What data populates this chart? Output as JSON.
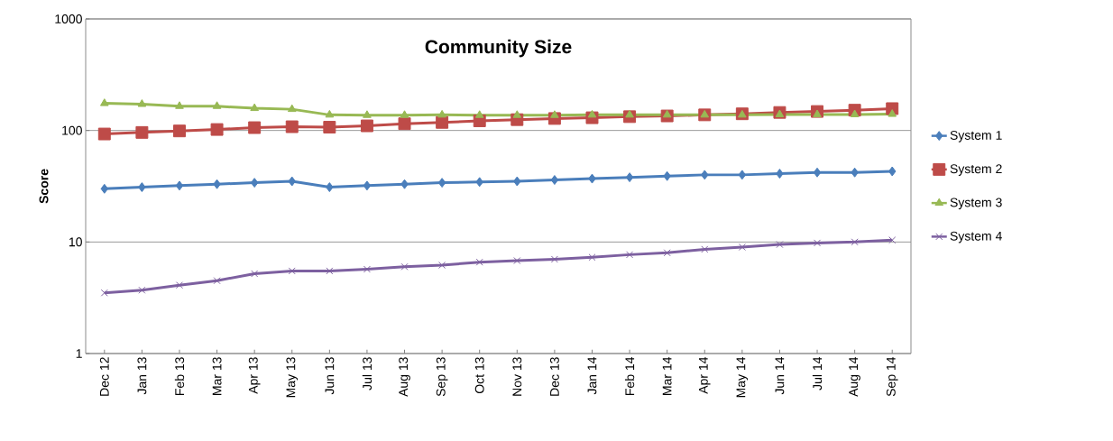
{
  "chart_data": {
    "type": "line",
    "title": "Community Size",
    "ylabel": "Score",
    "log": "y",
    "grid": "y",
    "legend": "right",
    "categories": [
      "Dec 12",
      "Jan 13",
      "Feb 13",
      "Mar 13",
      "Apr 13",
      "May 13",
      "Jun 13",
      "Jul 13",
      "Aug 13",
      "Sep 13",
      "Oct 13",
      "Nov 13",
      "Dec 13",
      "Jan 14",
      "Feb 14",
      "Mar 14",
      "Apr 14",
      "May 14",
      "Jun 14",
      "Jul 14",
      "Aug 14",
      "Sep 14"
    ],
    "ylim": [
      1,
      1000
    ],
    "yticks": [
      1,
      10,
      100,
      1000
    ],
    "series": [
      {
        "name": "System 1",
        "color": "#4a7ebb",
        "marker": "diamond",
        "values": [
          30,
          31,
          32,
          33,
          34,
          35,
          31,
          32,
          33,
          34,
          34.5,
          35,
          36,
          37,
          38,
          39,
          40,
          40,
          41,
          42,
          42,
          43
        ]
      },
      {
        "name": "System 2",
        "color": "#be4b48",
        "marker": "square",
        "values": [
          93,
          96,
          99,
          102,
          106,
          108,
          107,
          110,
          115,
          118,
          122,
          125,
          128,
          130,
          133,
          135,
          138,
          141,
          145,
          148,
          152,
          157
        ]
      },
      {
        "name": "System 3",
        "color": "#98b954",
        "marker": "triangle",
        "values": [
          175,
          172,
          165,
          165,
          158,
          155,
          138,
          137,
          137,
          138,
          137,
          137,
          137,
          138,
          138,
          138,
          138,
          138,
          139,
          139,
          139,
          140
        ]
      },
      {
        "name": "System 4",
        "color": "#7d60a0",
        "marker": "cross",
        "values": [
          3.5,
          3.7,
          4.1,
          4.5,
          5.2,
          5.5,
          5.5,
          5.7,
          6.0,
          6.2,
          6.6,
          6.8,
          7.0,
          7.3,
          7.7,
          8.0,
          8.6,
          9.0,
          9.5,
          9.8,
          10.0,
          10.4
        ]
      }
    ]
  }
}
